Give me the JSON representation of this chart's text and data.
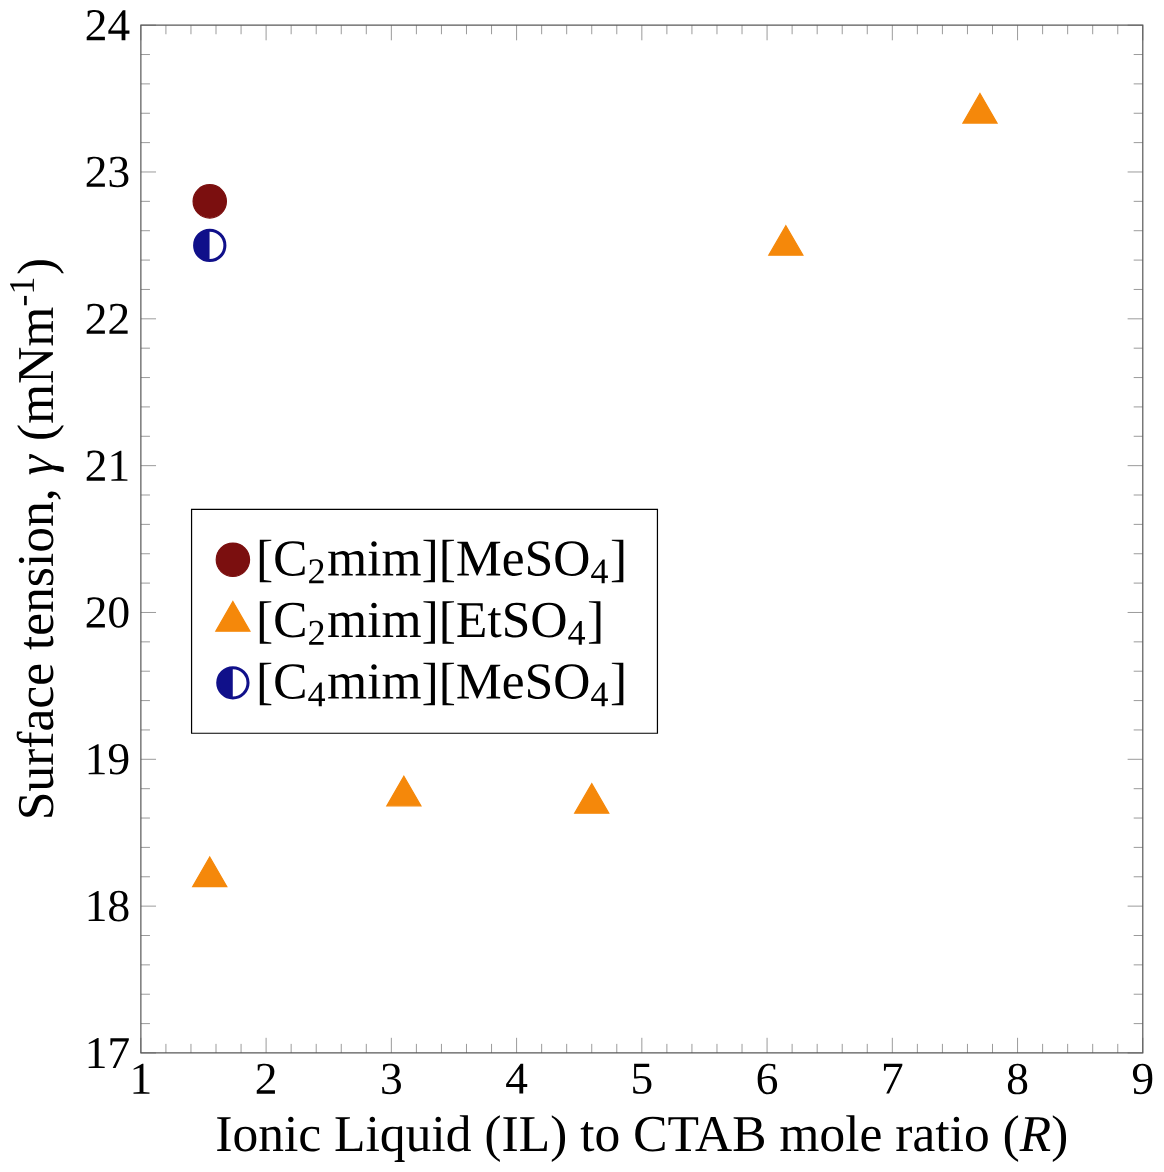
{
  "chart_data": {
    "type": "scatter",
    "xlabel": "Ionic Liquid (IL) to CTAB mole ratio (*R*)",
    "ylabel": "Surface tension, *γ* (mNm$^{-1}$)",
    "xlim": [
      1,
      9
    ],
    "xticks": [
      1,
      2,
      3,
      4,
      5,
      6,
      7,
      8,
      9
    ],
    "ylim": [
      17,
      24
    ],
    "yticks": [
      17,
      18,
      19,
      20,
      21,
      22,
      23,
      24
    ],
    "grid": false,
    "legend": "left",
    "series": [
      {
        "name": "[C$_{2}$mim][MeSO$_{4}$]",
        "color": "#7b0f0f",
        "marker": "circle",
        "x": [
          1.55
        ],
        "values": [
          22.8
        ]
      },
      {
        "name": "[C$_{2}$mim][EtSO$_{4}$]",
        "color": "#f5880a",
        "marker": "triangle",
        "x": [
          1.55,
          3.1,
          4.6,
          6.15,
          7.7
        ],
        "values": [
          18.2,
          18.75,
          18.7,
          22.5,
          23.4
        ]
      },
      {
        "name": "[C$_{4}$mim][MeSO$_{4}$]",
        "color": "#10108a",
        "marker": "half circle",
        "x": [
          1.55
        ],
        "values": [
          22.5
        ]
      }
    ]
  }
}
